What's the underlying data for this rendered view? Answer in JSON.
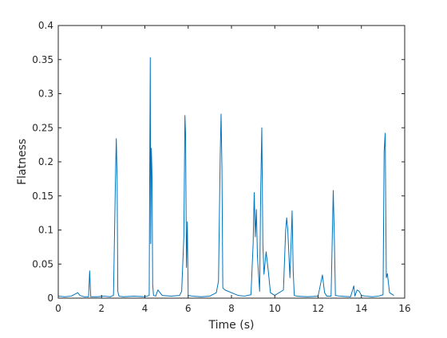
{
  "chart_data": {
    "type": "line",
    "title": "",
    "xlabel": "Time (s)",
    "ylabel": "Flatness",
    "xlim": [
      0,
      16
    ],
    "ylim": [
      0,
      0.4
    ],
    "xticks": [
      0,
      2,
      4,
      6,
      8,
      10,
      12,
      14,
      16
    ],
    "yticks": [
      0,
      0.05,
      0.1,
      0.15,
      0.2,
      0.25,
      0.3,
      0.35,
      0.4
    ],
    "xtick_labels": [
      "0",
      "2",
      "4",
      "6",
      "8",
      "10",
      "12",
      "14",
      "16"
    ],
    "ytick_labels": [
      "0",
      "0.05",
      "0.1",
      "0.15",
      "0.2",
      "0.25",
      "0.3",
      "0.35",
      "0.4"
    ],
    "grid": false,
    "legend": "none",
    "line_color": "#0072BD",
    "series": [
      {
        "x": [
          0.0,
          0.3,
          0.6,
          0.9,
          1.0,
          1.2,
          1.4,
          1.45,
          1.5,
          1.8,
          2.1,
          2.4,
          2.55,
          2.65,
          2.68,
          2.72,
          2.75,
          2.8,
          3.0,
          3.5,
          4.0,
          4.2,
          4.22,
          4.25,
          4.27,
          4.3,
          4.33,
          4.36,
          4.4,
          4.5,
          4.6,
          4.8,
          5.2,
          5.6,
          5.7,
          5.8,
          5.85,
          5.88,
          5.92,
          5.96,
          6.0,
          6.2,
          6.6,
          7.0,
          7.3,
          7.4,
          7.48,
          7.52,
          7.56,
          7.6,
          7.7,
          8.0,
          8.3,
          8.6,
          8.9,
          9.0,
          9.05,
          9.1,
          9.15,
          9.2,
          9.3,
          9.35,
          9.4,
          9.45,
          9.5,
          9.6,
          9.7,
          9.8,
          10.0,
          10.4,
          10.5,
          10.55,
          10.6,
          10.7,
          10.8,
          10.85,
          10.9,
          11.0,
          11.5,
          12.0,
          12.2,
          12.3,
          12.4,
          12.6,
          12.7,
          12.75,
          12.8,
          13.0,
          13.5,
          13.65,
          13.7,
          13.8,
          13.9,
          14.0,
          14.2,
          14.5,
          14.8,
          15.0,
          15.05,
          15.1,
          15.15,
          15.2,
          15.3,
          15.5
        ],
        "y": [
          0.003,
          0.002,
          0.003,
          0.008,
          0.004,
          0.002,
          0.002,
          0.04,
          0.002,
          0.002,
          0.003,
          0.002,
          0.004,
          0.19,
          0.234,
          0.17,
          0.01,
          0.003,
          0.002,
          0.003,
          0.002,
          0.004,
          0.165,
          0.353,
          0.08,
          0.22,
          0.18,
          0.02,
          0.004,
          0.003,
          0.012,
          0.004,
          0.003,
          0.004,
          0.01,
          0.09,
          0.268,
          0.24,
          0.045,
          0.112,
          0.004,
          0.003,
          0.002,
          0.003,
          0.008,
          0.025,
          0.21,
          0.27,
          0.19,
          0.015,
          0.012,
          0.008,
          0.004,
          0.003,
          0.005,
          0.08,
          0.155,
          0.09,
          0.13,
          0.06,
          0.01,
          0.16,
          0.25,
          0.08,
          0.035,
          0.068,
          0.04,
          0.008,
          0.004,
          0.012,
          0.098,
          0.118,
          0.1,
          0.03,
          0.128,
          0.04,
          0.004,
          0.003,
          0.002,
          0.003,
          0.034,
          0.008,
          0.003,
          0.003,
          0.158,
          0.09,
          0.004,
          0.003,
          0.002,
          0.018,
          0.003,
          0.012,
          0.01,
          0.004,
          0.003,
          0.002,
          0.003,
          0.005,
          0.215,
          0.242,
          0.03,
          0.036,
          0.008,
          0.004
        ]
      }
    ]
  }
}
